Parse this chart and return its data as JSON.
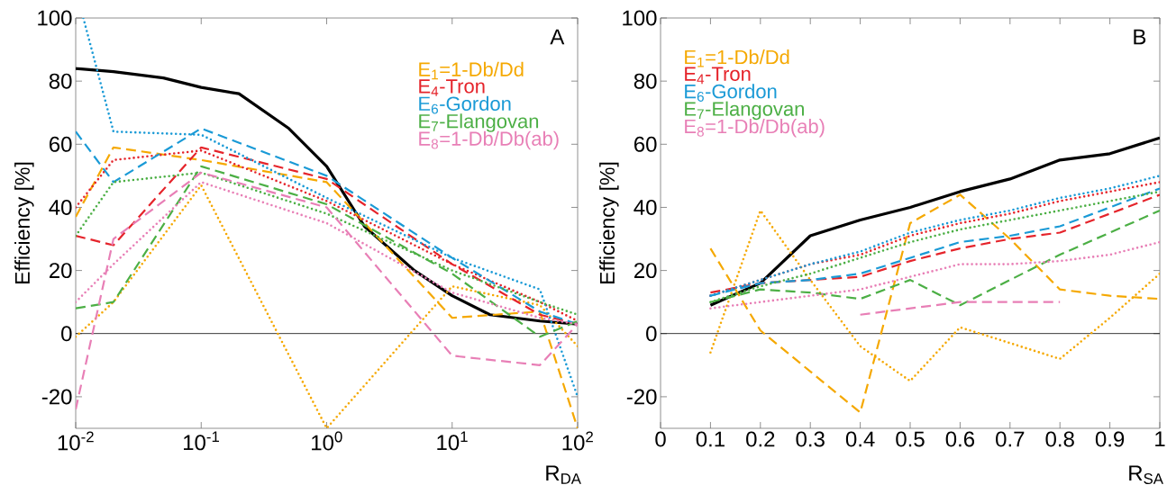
{
  "chart_data": [
    {
      "type": "line",
      "xlabel": "R$_{DA}$",
      "ylabel": "Efficiency [%]",
      "annotations": [
        "A"
      ],
      "log": "x",
      "legend": "top right",
      "xlim": [
        0.01,
        100
      ],
      "xticks": [
        {
          "value": 0.01,
          "label": "10$^{-2}$"
        },
        {
          "value": 0.1,
          "label": "10$^{-1}$"
        },
        {
          "value": 1,
          "label": "10$^{0}$"
        },
        {
          "value": 10,
          "label": "10$^{1}$"
        },
        {
          "value": 100,
          "label": "10$^{2}$"
        }
      ],
      "ylim": [
        -30,
        100
      ],
      "yticks": [
        -20,
        0,
        20,
        40,
        60,
        80,
        100
      ],
      "ref_lines": [
        {
          "axis": "y",
          "value": 0,
          "color": "#000000"
        }
      ],
      "x": [
        0.01,
        0.02,
        0.1,
        1,
        10,
        50,
        100
      ],
      "series": [
        {
          "color": "#000000",
          "line_style": "solid",
          "x": [
            0.01,
            0.02,
            0.05,
            0.1,
            0.2,
            0.5,
            1,
            2,
            5,
            10,
            20,
            50,
            100
          ],
          "values": [
            84,
            83,
            81,
            78,
            76,
            65,
            53,
            34,
            20,
            12,
            6,
            4,
            3
          ]
        },
        {
          "name": "E$_{1}$=1-Db/Dd",
          "color": "#f5a800",
          "line_style": "dashed",
          "values": [
            37,
            59,
            55,
            48,
            5,
            7,
            -30
          ]
        },
        {
          "color": "#f5a800",
          "line_style": "dotted",
          "values": [
            -1,
            10,
            47,
            -30,
            15,
            9,
            -4
          ]
        },
        {
          "name": "E$_{4}$-Tron",
          "color": "#e5242b",
          "line_style": "dashed",
          "values": [
            31,
            28,
            59,
            49,
            22,
            6,
            3
          ]
        },
        {
          "color": "#e5242b",
          "line_style": "dotted",
          "values": [
            40,
            55,
            58,
            42,
            22,
            10,
            4
          ]
        },
        {
          "name": "E$_{6}$-Gordon",
          "color": "#1a9ad6",
          "line_style": "dashed",
          "values": [
            64,
            48,
            65,
            50,
            24,
            7,
            3
          ]
        },
        {
          "color": "#1a9ad6",
          "line_style": "dotted",
          "x": [
            0.0115,
            0.02,
            0.1,
            1,
            10,
            50,
            100
          ],
          "values": [
            100,
            64,
            63,
            43,
            24,
            14,
            -20
          ]
        },
        {
          "name": "E$_{7}$-Elangovan",
          "color": "#4caf45",
          "line_style": "dashed",
          "values": [
            8,
            10,
            53,
            41,
            19,
            -1,
            4
          ]
        },
        {
          "color": "#4caf45",
          "line_style": "dotted",
          "values": [
            31,
            48,
            51,
            38,
            20,
            10,
            6
          ]
        },
        {
          "name": "E$_{8}$=1-Db/Db(ab)",
          "color": "#e87fb6",
          "line_style": "dashed",
          "values": [
            -24,
            30,
            51,
            40,
            -7,
            -10,
            3
          ]
        },
        {
          "color": "#e87fb6",
          "line_style": "dotted",
          "values": [
            10,
            22,
            48,
            35,
            13,
            5,
            3
          ]
        }
      ]
    },
    {
      "type": "line",
      "xlabel": "R$_{SA}$",
      "ylabel": "Efficiency [%]",
      "annotations": [
        "B"
      ],
      "legend": "top left",
      "xlim": [
        0,
        1
      ],
      "xticks": [
        0,
        0.1,
        0.2,
        0.3,
        0.4,
        0.5,
        0.6,
        0.7,
        0.8,
        0.9,
        1
      ],
      "ylim": [
        -30,
        100
      ],
      "yticks": [
        -20,
        0,
        20,
        40,
        60,
        80,
        100
      ],
      "ref_lines": [
        {
          "axis": "y",
          "value": 0,
          "color": "#000000"
        }
      ],
      "x": [
        0.1,
        0.2,
        0.3,
        0.4,
        0.5,
        0.6,
        0.7,
        0.8,
        0.9,
        1
      ],
      "series": [
        {
          "color": "#000000",
          "line_style": "solid",
          "values": [
            9,
            16,
            31,
            36,
            40,
            45,
            49,
            55,
            57,
            62
          ]
        },
        {
          "name": "E$_{1}$=1-Db/Dd",
          "color": "#f5a800",
          "line_style": "dashed",
          "values": [
            27,
            1,
            -12,
            -25,
            35,
            44,
            30,
            14,
            12,
            11
          ]
        },
        {
          "color": "#f5a800",
          "line_style": "dotted",
          "values": [
            -6,
            39,
            17,
            -4,
            -15,
            2,
            -3,
            -8,
            5,
            19
          ]
        },
        {
          "name": "E$_{4}$-Tron",
          "color": "#e5242b",
          "line_style": "dashed",
          "values": [
            13,
            16,
            17,
            18,
            23,
            27,
            30,
            32,
            38,
            44
          ]
        },
        {
          "color": "#e5242b",
          "line_style": "dotted",
          "values": [
            12,
            17,
            22,
            25,
            31,
            35,
            38,
            42,
            45,
            48
          ]
        },
        {
          "name": "E$_{6}$-Gordon",
          "color": "#1a9ad6",
          "line_style": "dashed",
          "values": [
            12,
            16,
            17,
            19,
            24,
            29,
            31,
            34,
            40,
            46
          ]
        },
        {
          "color": "#1a9ad6",
          "line_style": "dotted",
          "values": [
            12,
            17,
            22,
            26,
            32,
            36,
            39,
            43,
            46,
            50
          ]
        },
        {
          "name": "E$_{7}$-Elangovan",
          "color": "#4caf45",
          "line_style": "dashed",
          "values": [
            10,
            14,
            13,
            11,
            17,
            9,
            17,
            25,
            32,
            39
          ]
        },
        {
          "color": "#4caf45",
          "line_style": "dotted",
          "values": [
            10,
            15,
            19,
            24,
            29,
            33,
            36,
            39,
            42,
            45
          ]
        },
        {
          "name": "E$_{8}$=1-Db/Db(ab)",
          "color": "#e87fb6",
          "line_style": "dashed",
          "x": [
            0.4,
            0.5,
            0.6,
            0.7,
            0.8
          ],
          "values": [
            6,
            8,
            10,
            10,
            10
          ]
        },
        {
          "color": "#e87fb6",
          "line_style": "dotted",
          "values": [
            8,
            10,
            12,
            14,
            18,
            22,
            22,
            23,
            25,
            29
          ]
        }
      ]
    }
  ]
}
